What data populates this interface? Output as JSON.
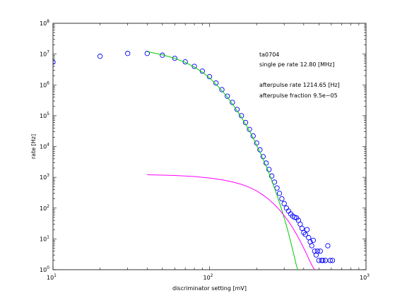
{
  "chart_data": {
    "type": "scatter",
    "xscale": "log",
    "yscale": "log",
    "xlim": [
      10,
      1000
    ],
    "ylim": [
      1,
      100000000
    ],
    "xlabel": "discriminator setting [mV]",
    "ylabel": "rate [Hz]",
    "grid": false,
    "x_ticks": [
      {
        "value": 10,
        "base": "10",
        "exp": "1"
      },
      {
        "value": 100,
        "base": "10",
        "exp": "2"
      },
      {
        "value": 1000,
        "base": "10",
        "exp": "3"
      }
    ],
    "y_ticks": [
      {
        "value": 1,
        "base": "10",
        "exp": "0"
      },
      {
        "value": 10,
        "base": "10",
        "exp": "1"
      },
      {
        "value": 100,
        "base": "10",
        "exp": "2"
      },
      {
        "value": 1000,
        "base": "10",
        "exp": "3"
      },
      {
        "value": 10000,
        "base": "10",
        "exp": "4"
      },
      {
        "value": 100000,
        "base": "10",
        "exp": "5"
      },
      {
        "value": 1000000,
        "base": "10",
        "exp": "6"
      },
      {
        "value": 10000000,
        "base": "10",
        "exp": "7"
      },
      {
        "value": 100000000,
        "base": "10",
        "exp": "8"
      }
    ],
    "annotations": {
      "run_id": "ta0704",
      "single_pe_rate": "single pe rate 12.80 [MHz]",
      "afterpulse_rate": "afterpulse rate 1214.65 [Hz]",
      "afterpulse_fraction": "afterpulse fraction 9.5e−05"
    },
    "series": [
      {
        "kind": "scatter",
        "marker": "circle",
        "color": "#0000ff",
        "points": [
          [
            10,
            5500000.0
          ],
          [
            20,
            8500000.0
          ],
          [
            30,
            10500000.0
          ],
          [
            40,
            10500000.0
          ],
          [
            50,
            9200000.0
          ],
          [
            60,
            7300000.0
          ],
          [
            70,
            5600000.0
          ],
          [
            80,
            4000000.0
          ],
          [
            90,
            2800000.0
          ],
          [
            100,
            1850000.0
          ],
          [
            110,
            1150000.0
          ],
          [
            120,
            700000.0
          ],
          [
            130,
            430000.0
          ],
          [
            140,
            270000.0
          ],
          [
            150,
            160000.0
          ],
          [
            160,
            100000.0
          ],
          [
            170,
            60000.0
          ],
          [
            180,
            36000.0
          ],
          [
            190,
            22000.0
          ],
          [
            200,
            13000.0
          ],
          [
            210,
            7800.0
          ],
          [
            220,
            4700.0
          ],
          [
            230,
            2900.0
          ],
          [
            240,
            1800.0
          ],
          [
            250,
            1100.0
          ],
          [
            260,
            700
          ],
          [
            270,
            450
          ],
          [
            280,
            300
          ],
          [
            290,
            200
          ],
          [
            300,
            140
          ],
          [
            310,
            100
          ],
          [
            320,
            80
          ],
          [
            330,
            65
          ],
          [
            340,
            55
          ],
          [
            350,
            50
          ],
          [
            360,
            48
          ],
          [
            370,
            40
          ],
          [
            380,
            30
          ],
          [
            390,
            22
          ],
          [
            400,
            16
          ],
          [
            410,
            14
          ],
          [
            420,
            20
          ],
          [
            430,
            11
          ],
          [
            440,
            8
          ],
          [
            450,
            6
          ],
          [
            460,
            9
          ],
          [
            470,
            4
          ],
          [
            480,
            3
          ],
          [
            490,
            4
          ],
          [
            500,
            2
          ],
          [
            510,
            4
          ],
          [
            520,
            2
          ],
          [
            530,
            2
          ],
          [
            550,
            2
          ],
          [
            570,
            6
          ],
          [
            590,
            2
          ],
          [
            610,
            2
          ]
        ]
      },
      {
        "kind": "line",
        "color": "#00cc00",
        "points": [
          [
            40,
            12000000.0
          ],
          [
            50,
            9500000.0
          ],
          [
            60,
            7300000.0
          ],
          [
            70,
            5400000.0
          ],
          [
            80,
            3800000.0
          ],
          [
            90,
            2600000.0
          ],
          [
            100,
            1700000.0
          ],
          [
            110,
            1050000.0
          ],
          [
            120,
            650000.0
          ],
          [
            130,
            400000.0
          ],
          [
            140,
            240000.0
          ],
          [
            150,
            145000.0
          ],
          [
            160,
            88000.0
          ],
          [
            170,
            53000.0
          ],
          [
            180,
            32000.0
          ],
          [
            190,
            19000.0
          ],
          [
            200,
            11000.0
          ],
          [
            210,
            6600.0
          ],
          [
            220,
            3900.0
          ],
          [
            230,
            2300.0
          ],
          [
            240,
            1350.0
          ],
          [
            250,
            780
          ],
          [
            260,
            450
          ],
          [
            270,
            260
          ],
          [
            280,
            150
          ],
          [
            290,
            85
          ],
          [
            300,
            48
          ],
          [
            310,
            27
          ],
          [
            320,
            15
          ],
          [
            330,
            8
          ],
          [
            340,
            4.4
          ],
          [
            350,
            2.4
          ],
          [
            360,
            1.3
          ],
          [
            367,
            1
          ]
        ]
      },
      {
        "kind": "line",
        "color": "#ff00ff",
        "points": [
          [
            40,
            1214
          ],
          [
            60,
            1150
          ],
          [
            80,
            1060
          ],
          [
            100,
            950
          ],
          [
            120,
            830
          ],
          [
            140,
            710
          ],
          [
            160,
            590
          ],
          [
            180,
            470
          ],
          [
            200,
            360
          ],
          [
            220,
            265
          ],
          [
            240,
            190
          ],
          [
            260,
            130
          ],
          [
            280,
            88
          ],
          [
            300,
            57
          ],
          [
            320,
            37
          ],
          [
            340,
            23
          ],
          [
            360,
            14
          ],
          [
            380,
            8.5
          ],
          [
            400,
            5
          ],
          [
            420,
            3
          ],
          [
            440,
            1.8
          ],
          [
            460,
            1.15
          ],
          [
            470,
            1
          ]
        ]
      }
    ]
  }
}
